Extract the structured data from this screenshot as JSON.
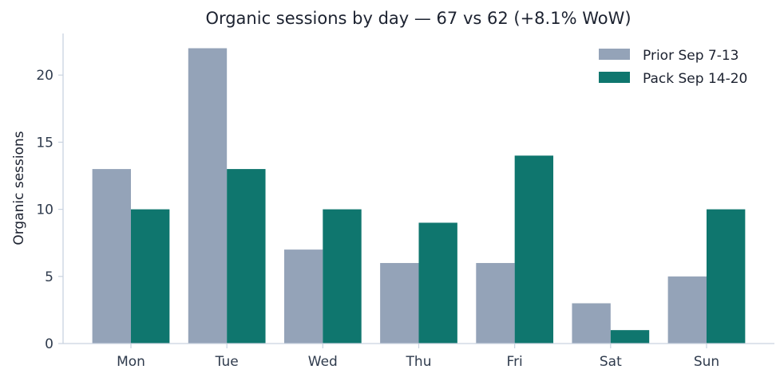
{
  "chart_data": {
    "type": "bar",
    "title": "Organic sessions by day — 67 vs 62 (+8.1% WoW)",
    "xlabel": "",
    "ylabel": "Organic sessions",
    "categories": [
      "Mon",
      "Tue",
      "Wed",
      "Thu",
      "Fri",
      "Sat",
      "Sun"
    ],
    "series": [
      {
        "name": "Prior Sep 7-13",
        "color": "#94a3b8",
        "values": [
          13,
          22,
          7,
          6,
          6,
          3,
          5
        ]
      },
      {
        "name": "Pack Sep 14-20",
        "color": "#0f766e",
        "values": [
          10,
          13,
          10,
          9,
          14,
          1,
          10
        ]
      }
    ],
    "ylim": [
      0,
      23.1
    ],
    "yticks": [
      0,
      5,
      10,
      15,
      20
    ],
    "ytick_labels": [
      "0",
      "5",
      "10",
      "15",
      "20"
    ],
    "grid": false,
    "legend_position": "top-right",
    "axis_color": "#c9d3e0"
  }
}
